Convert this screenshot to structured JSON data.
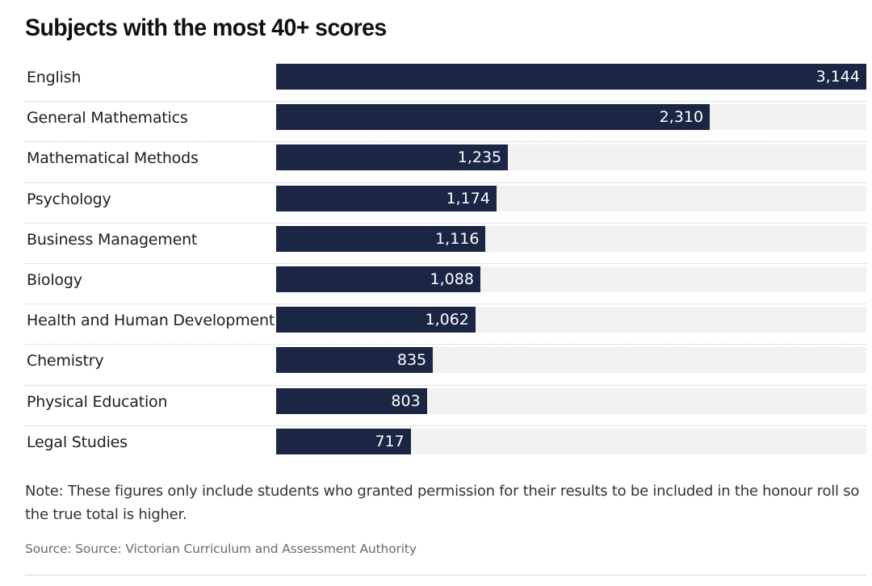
{
  "chart_data": {
    "type": "bar",
    "orientation": "horizontal",
    "title": "Subjects with the most 40+ scores",
    "categories": [
      "English",
      "General Mathematics",
      "Mathematical Methods",
      "Psychology",
      "Business Management",
      "Biology",
      "Health and Human Development",
      "Chemistry",
      "Physical Education",
      "Legal Studies"
    ],
    "values": [
      3144,
      2310,
      1235,
      1174,
      1116,
      1088,
      1062,
      835,
      803,
      717
    ],
    "value_labels": [
      "3,144",
      "2,310",
      "1,235",
      "1,174",
      "1,116",
      "1,088",
      "1,062",
      "835",
      "803",
      "717"
    ],
    "xlim": [
      0,
      3144
    ],
    "grid": false,
    "legend": "none",
    "bar_color": "#1b2645",
    "track_color": "#f2f2f2",
    "value_label_color": "#ffffff"
  },
  "note": "Note: These figures only include students who granted permission for their results to be included in the honour roll so the true total is higher.",
  "source": "Source: Source: Victorian Curriculum and Assessment Authority"
}
